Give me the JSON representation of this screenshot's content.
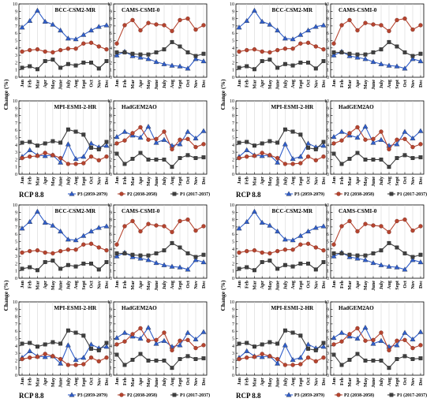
{
  "figure": {
    "scenario_label": "RCP 8.8",
    "ylabel": "Change (%)",
    "legend": [
      {
        "label": "P3 (2059-2079)",
        "color": "#2f5dc9",
        "marker": "triangle"
      },
      {
        "label": "P2 (2038-2058)",
        "color": "#b5442f",
        "marker": "circle"
      },
      {
        "label": "P1 (2017-2037)",
        "color": "#3f3f3f",
        "marker": "square"
      }
    ]
  },
  "chart_data": {
    "type": "line",
    "categories": [
      "Jan",
      "Feb",
      "Mar",
      "Apr",
      "May",
      "June",
      "July",
      "Aug",
      "Sept",
      "Oct",
      "Nov",
      "Dec"
    ],
    "ylim": [
      0,
      10
    ],
    "yticks": [
      0,
      1,
      2,
      3,
      4,
      5,
      6,
      7,
      8,
      9,
      10
    ],
    "grid": "vertical",
    "repeats": 4,
    "series_colors": {
      "P3": "#2f5dc9",
      "P2": "#b5442f",
      "P1": "#3f3f3f"
    },
    "panels": [
      {
        "title": "BCC-CSM2-MR",
        "series": [
          {
            "name": "P3 (2059-2079)",
            "values": [
              6.8,
              7.7,
              9.1,
              7.6,
              7.2,
              6.4,
              5.3,
              5.2,
              5.8,
              6.4,
              6.9,
              7.1
            ]
          },
          {
            "name": "P2 (2038-2058)",
            "values": [
              3.5,
              3.7,
              3.8,
              3.5,
              3.4,
              3.7,
              3.9,
              3.9,
              4.6,
              4.7,
              4.2,
              3.8
            ]
          },
          {
            "name": "P1 (2017-2037)",
            "values": [
              1.3,
              1.5,
              1.1,
              2.2,
              2.4,
              1.3,
              1.8,
              1.6,
              2.0,
              2.0,
              1.2,
              2.2
            ]
          }
        ]
      },
      {
        "title": "CAMS-CSMI-0",
        "series": [
          {
            "name": "P3 (2059-2079)",
            "values": [
              3.0,
              3.5,
              2.9,
              2.7,
              2.5,
              2.1,
              1.8,
              1.6,
              1.5,
              1.2,
              2.5,
              2.2
            ]
          },
          {
            "name": "P2 (2038-2058)",
            "values": [
              4.6,
              7.1,
              7.8,
              6.4,
              7.4,
              7.2,
              7.1,
              6.3,
              7.8,
              8.0,
              6.5,
              7.1
            ]
          },
          {
            "name": "P1 (2017-2037)",
            "values": [
              3.4,
              3.4,
              3.2,
              3.1,
              3.1,
              3.4,
              3.8,
              4.8,
              4.2,
              3.4,
              2.9,
              3.2
            ]
          }
        ]
      },
      {
        "title": "MPI-ESMI-2-HR",
        "series": [
          {
            "name": "P3 (2059-2079)",
            "values": [
              2.4,
              3.3,
              2.6,
              2.5,
              2.6,
              1.6,
              4.1,
              2.1,
              2.4,
              4.2,
              3.7,
              3.9
            ]
          },
          {
            "name": "P2 (2038-2058)",
            "values": [
              2.2,
              2.4,
              2.5,
              2.9,
              2.6,
              2.2,
              1.4,
              1.4,
              1.5,
              2.4,
              1.9,
              2.4
            ]
          },
          {
            "name": "P1 (2017-2037)",
            "values": [
              4.3,
              4.4,
              3.9,
              4.2,
              4.5,
              4.3,
              6.1,
              5.8,
              5.4,
              3.6,
              3.4,
              4.4
            ]
          }
        ]
      },
      {
        "title": "HadGEM2AO",
        "series": [
          {
            "name": "P3 (2059-2079)",
            "values": [
              5.1,
              5.8,
              5.3,
              5.0,
              6.5,
              4.3,
              4.7,
              3.9,
              4.1,
              5.8,
              4.9,
              5.9
            ]
          },
          {
            "name": "P2 (2038-2058)",
            "values": [
              4.2,
              4.6,
              5.6,
              6.4,
              4.7,
              4.8,
              5.8,
              3.4,
              4.7,
              4.8,
              3.7,
              4.1
            ]
          },
          {
            "name": "P1 (2017-2037)",
            "values": [
              2.8,
              1.4,
              2.1,
              2.9,
              2.0,
              2.0,
              2.0,
              1.0,
              2.2,
              2.6,
              2.2,
              2.3
            ]
          }
        ]
      }
    ]
  }
}
